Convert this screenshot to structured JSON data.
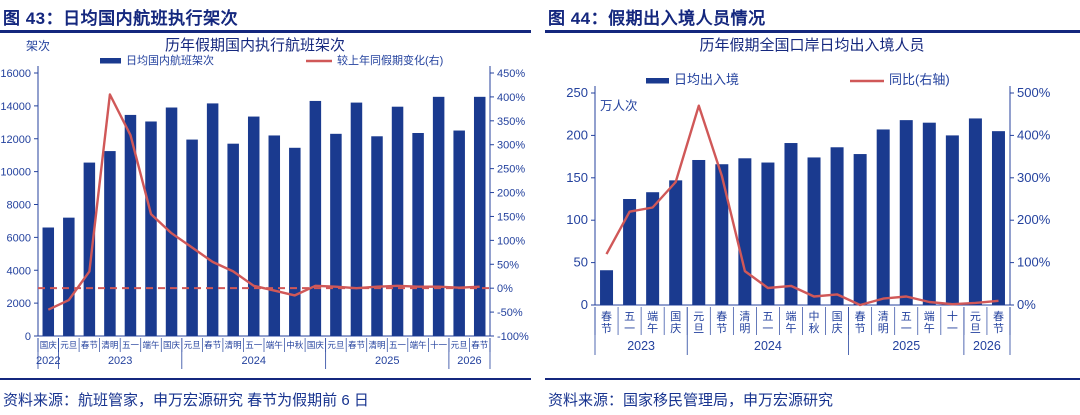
{
  "colors": {
    "navy": "#14277e",
    "bar": "#1a3a8f",
    "tick": "#24429e",
    "line": "#d05858"
  },
  "panels": [
    {
      "header": "图 43：日均国内航班执行架次",
      "source": "资料来源：航班管家，申万宏源研究  春节为假期前 6 日"
    },
    {
      "header": "图 44：假期出入境人员情况",
      "source": "资料来源：国家移民管理局，申万宏源研究"
    }
  ],
  "chart_data": [
    {
      "type": "bar+line",
      "title": "历年假期国内执行航班架次",
      "unit_label": "架次",
      "legend": [
        {
          "name": "日均国内航班架次",
          "kind": "bar"
        },
        {
          "name": "较上年同假期变化(右)",
          "kind": "line"
        }
      ],
      "categories": [
        "国庆",
        "元旦",
        "春节",
        "清明",
        "五一",
        "端午",
        "国庆",
        "元旦",
        "春节",
        "清明",
        "五一",
        "端午",
        "中秋",
        "国庆",
        "元旦",
        "春节",
        "清明",
        "五一",
        "端午",
        "十一",
        "元旦",
        "春节"
      ],
      "year_groups": [
        {
          "year": "2022",
          "count": 1
        },
        {
          "year": "2023",
          "count": 6
        },
        {
          "year": "2024",
          "count": 7
        },
        {
          "year": "2025",
          "count": 6
        },
        {
          "year": "2026",
          "count": 2
        }
      ],
      "bars": [
        6600,
        7200,
        10550,
        11250,
        13450,
        13050,
        13900,
        11950,
        14150,
        11700,
        13350,
        12200,
        11450,
        14300,
        12300,
        14200,
        12150,
        13950,
        12350,
        14550,
        12500,
        14550
      ],
      "line_pct": [
        -45,
        -25,
        35,
        405,
        320,
        155,
        115,
        85,
        55,
        35,
        5,
        -5,
        -15,
        5,
        3,
        0,
        3,
        5,
        3,
        3,
        1,
        3
      ],
      "y_left": {
        "min": 0,
        "max": 16000,
        "step": 2000
      },
      "y_right": {
        "min": -100,
        "max": 450,
        "step": 50,
        "suffix": "%"
      },
      "zero_dash_at_pct": 0,
      "legend_position": "top",
      "grid": false
    },
    {
      "type": "bar+line",
      "title": "历年假期全国口岸日均出入境人员",
      "unit_label": "万人次",
      "legend": [
        {
          "name": "日均出入境",
          "kind": "bar"
        },
        {
          "name": "同比(右轴)",
          "kind": "line"
        }
      ],
      "categories": [
        "春节",
        "五一",
        "端午",
        "国庆",
        "元旦",
        "春节",
        "清明",
        "五一",
        "端午",
        "中秋",
        "国庆",
        "春节",
        "清明",
        "五一",
        "端午",
        "十一",
        "元旦",
        "春节"
      ],
      "year_groups": [
        {
          "year": "2023",
          "count": 4
        },
        {
          "year": "2024",
          "count": 7
        },
        {
          "year": "2025",
          "count": 5
        },
        {
          "year": "2026",
          "count": 2
        }
      ],
      "bars": [
        41,
        125,
        133,
        147,
        171,
        166,
        173,
        168,
        191,
        174,
        186,
        178,
        207,
        218,
        215,
        200,
        220,
        205
      ],
      "line_pct": [
        120,
        220,
        230,
        290,
        470,
        305,
        80,
        40,
        45,
        20,
        25,
        0,
        15,
        20,
        7,
        2,
        5,
        10
      ],
      "y_left": {
        "min": 0,
        "max": 250,
        "step": 50
      },
      "y_right": {
        "min": 0,
        "max": 500,
        "step": 100,
        "suffix": "%"
      },
      "zero_dash_at_pct": null,
      "legend_position": "top",
      "grid": false
    }
  ]
}
